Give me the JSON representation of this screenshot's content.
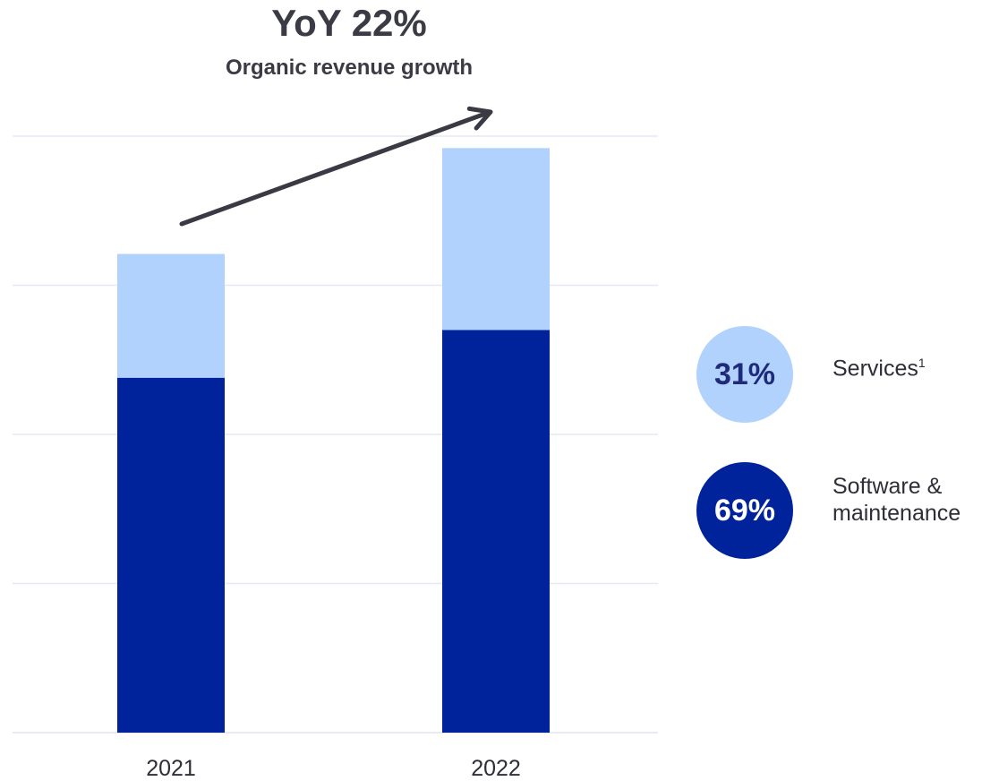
{
  "chart_data": {
    "type": "bar",
    "stacked": true,
    "categories": [
      "2021",
      "2022"
    ],
    "series": [
      {
        "name": "Software & maintenance",
        "values": [
          2.38,
          2.7
        ],
        "color": "#00239c"
      },
      {
        "name": "Services",
        "values": [
          0.83,
          1.22
        ],
        "color": "#b0d2fd"
      }
    ],
    "ylim": [
      0,
      4
    ],
    "grid": true,
    "xlabel": "",
    "ylabel": "",
    "annotation": {
      "headline": "YoY 22%",
      "subheadline": "Organic revenue growth",
      "arrow": "upward from 2021 bar to 2022 bar"
    },
    "legend": {
      "placement": "right",
      "items": [
        {
          "share": "31%",
          "label": "Services",
          "footnote": "1",
          "color": "#b0d2fd",
          "text_color": "#1f2b7a"
        },
        {
          "share": "69%",
          "label_line1": "Software &",
          "label_line2": "maintenance",
          "color": "#00239c",
          "text_color": "#ffffff"
        }
      ]
    }
  }
}
